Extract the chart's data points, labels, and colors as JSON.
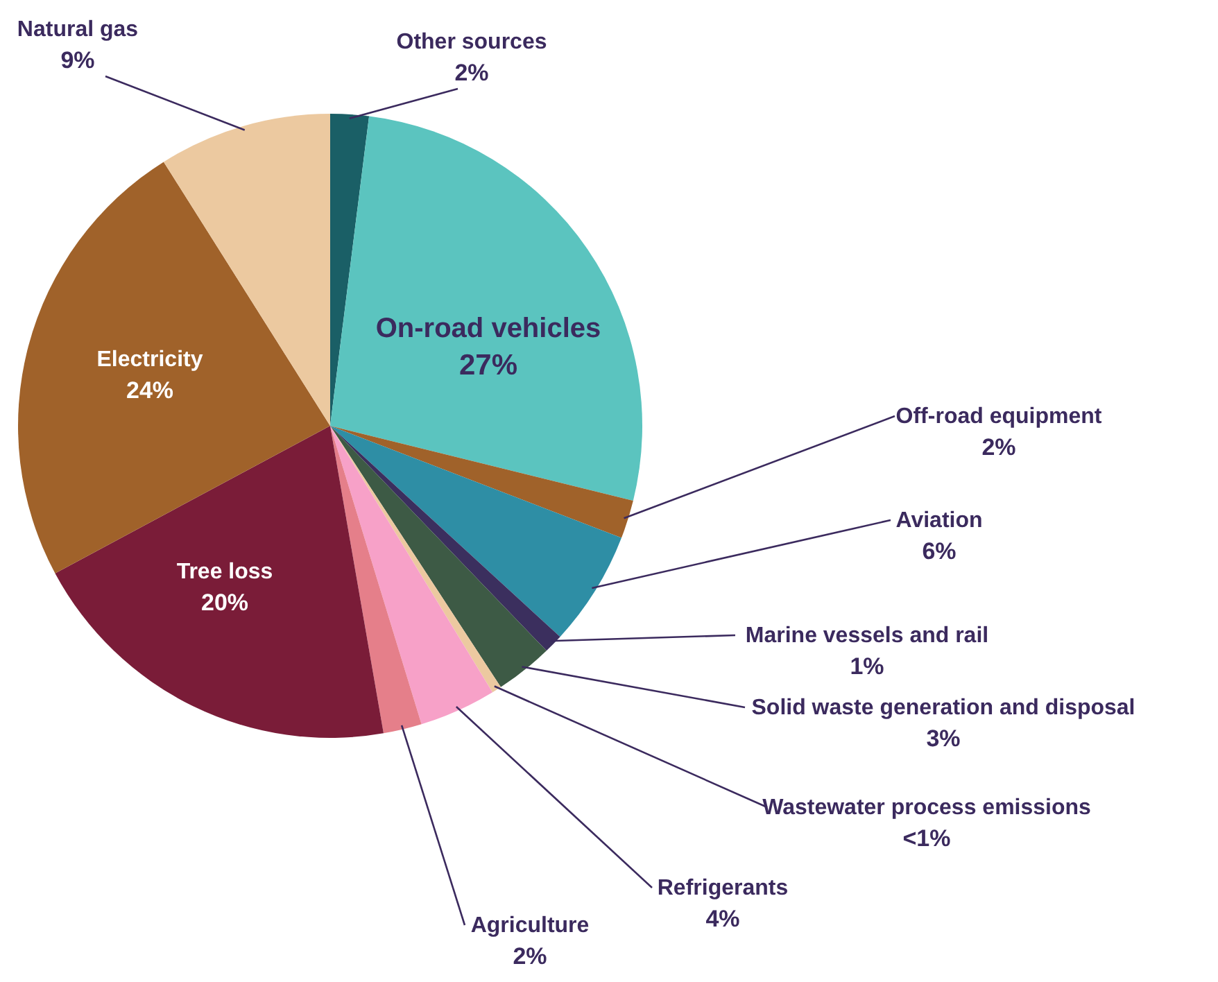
{
  "chart_data": {
    "type": "pie",
    "categories": [
      "Other sources",
      "On-road vehicles",
      "Off-road equipment",
      "Aviation",
      "Marine vessels and rail",
      "Solid waste generation and disposal",
      "Wastewater process emissions",
      "Refrigerants",
      "Agriculture",
      "Tree loss",
      "Electricity",
      "Natural gas"
    ],
    "values": [
      2,
      27,
      2,
      6,
      1,
      3,
      0.5,
      4,
      2,
      20,
      24,
      9
    ],
    "value_labels": [
      "2%",
      "27%",
      "2%",
      "6%",
      "1%",
      "3%",
      "<1%",
      "4%",
      "2%",
      "20%",
      "24%",
      "9%"
    ],
    "colors": [
      "#1a5f66",
      "#5bc4bf",
      "#a0622a",
      "#2e8ea5",
      "#3b2f5e",
      "#3d5a45",
      "#ecc9a0",
      "#f7a1c8",
      "#e57f8a",
      "#7a1c38",
      "#a0622a",
      "#ecc9a0"
    ]
  }
}
